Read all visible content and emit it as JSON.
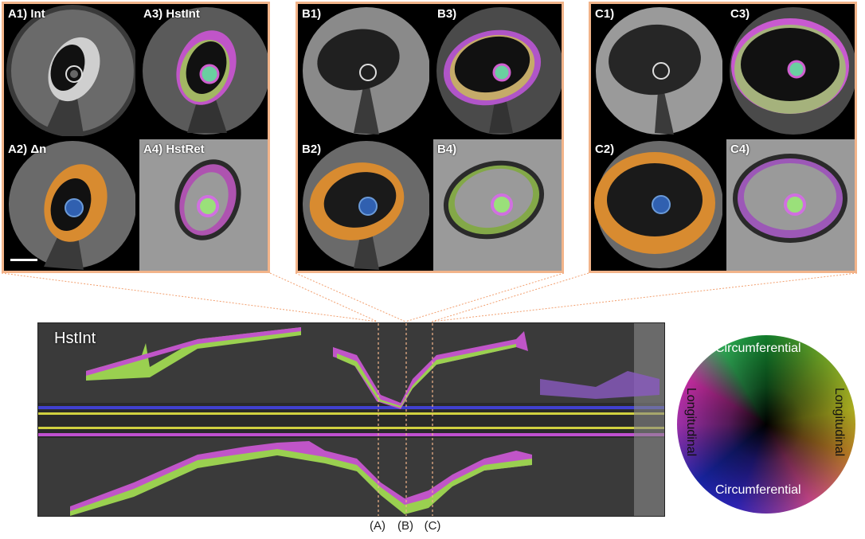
{
  "panels": {
    "A": [
      "A1) Int",
      "A3) HstInt",
      "A2) Δn",
      "A4) HstRet"
    ],
    "B": [
      "B1)",
      "B3)",
      "B2)",
      "B4)"
    ],
    "C": [
      "C1)",
      "C3)",
      "C2)",
      "C4)"
    ]
  },
  "longitudinal_view": {
    "title": "HstInt",
    "markers": [
      "(A)",
      "(B)",
      "(C)"
    ]
  },
  "color_wheel": {
    "top_label": "Circumferential",
    "bottom_label": "Circumferential",
    "left_label": "Longitudinal",
    "right_label": "Longitudinal"
  },
  "colors": {
    "frame": "#f2b48a",
    "zoom_line": "#f2a070"
  }
}
